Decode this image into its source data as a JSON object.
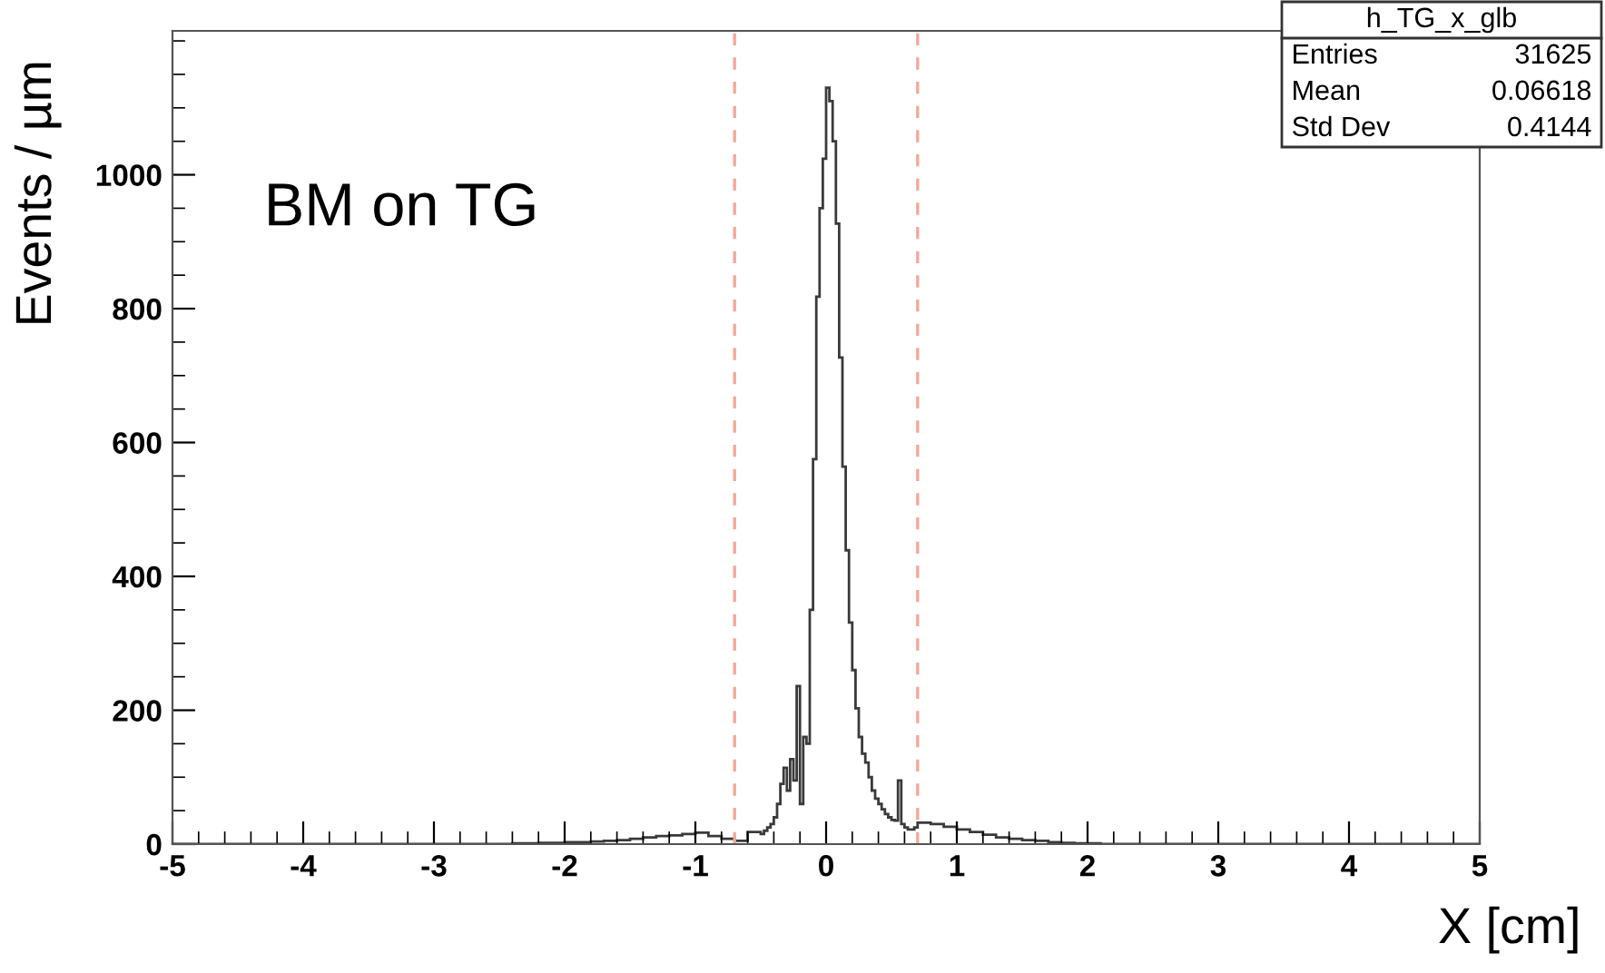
{
  "chart_data": {
    "type": "histogram",
    "title": "h_TG_x_glb",
    "xlabel": "X [cm]",
    "ylabel": "Events / µm",
    "annotations": [
      "BM on TG",
      "Entries",
      "31625",
      "Mean",
      "0.06618",
      "Std Dev",
      "0.4144"
    ],
    "bins": [
      -5,
      -2.5,
      -2.4,
      -2.3,
      -2.2,
      -2.1,
      -2.0,
      -1.9,
      -1.8,
      -1.7,
      -1.6,
      -1.5,
      -1.4,
      -1.3,
      -1.2,
      -1.1,
      -1.0,
      -0.9,
      -0.8,
      -0.7,
      -0.6,
      -0.5,
      -0.475,
      -0.45,
      -0.425,
      -0.4,
      -0.375,
      -0.35,
      -0.325,
      -0.3,
      -0.275,
      -0.25,
      -0.225,
      -0.2,
      -0.175,
      -0.15,
      -0.125,
      -0.1,
      -0.075,
      -0.05,
      -0.025,
      0,
      0.025,
      0.05,
      0.075,
      0.1,
      0.125,
      0.15,
      0.175,
      0.2,
      0.225,
      0.25,
      0.275,
      0.3,
      0.325,
      0.35,
      0.375,
      0.4,
      0.425,
      0.45,
      0.475,
      0.5,
      0.525,
      0.55,
      0.575,
      0.6,
      0.625,
      0.65,
      0.675,
      0.7,
      0.8,
      0.9,
      1.0,
      1.1,
      1.2,
      1.3,
      1.4,
      1.5,
      1.6,
      1.7,
      1.8,
      1.9,
      2.0,
      2.1,
      2.2,
      2.3,
      2.4,
      2.5,
      5
    ],
    "values": [
      0,
      0,
      1,
      1,
      2,
      2,
      3,
      3,
      4,
      5,
      6,
      8,
      10,
      12,
      13,
      15,
      17,
      12,
      8,
      5,
      18,
      15,
      20,
      25,
      30,
      40,
      60,
      90,
      114,
      80,
      127,
      95,
      236,
      60,
      160,
      150,
      350,
      575,
      818,
      950,
      1024,
      1130,
      1110,
      1050,
      927,
      727,
      564,
      439,
      331,
      260,
      203,
      160,
      135,
      122,
      100,
      80,
      68,
      60,
      52,
      45,
      40,
      36,
      35,
      95,
      30,
      25,
      22,
      22,
      25,
      32,
      30,
      26,
      22,
      18,
      14,
      10,
      8,
      6,
      5,
      3,
      2,
      1,
      1,
      0,
      0,
      0,
      0,
      0
    ],
    "color": "#3a3a3a",
    "xlim": [
      -5,
      5
    ],
    "ylim": [
      0,
      1215
    ],
    "xticks": [
      -5,
      -4,
      -3,
      -2,
      -1,
      0,
      1,
      2,
      3,
      4,
      5
    ],
    "yticks": [
      0,
      200,
      400,
      600,
      800,
      1000
    ],
    "ref_lines": [
      {
        "axis": "x",
        "value": -0.7,
        "color": "#f4a89a",
        "line_style": "dashed"
      },
      {
        "axis": "x",
        "value": 0.7,
        "color": "#f4a89a",
        "line_style": "dashed"
      }
    ],
    "grid": false,
    "legend": false
  }
}
